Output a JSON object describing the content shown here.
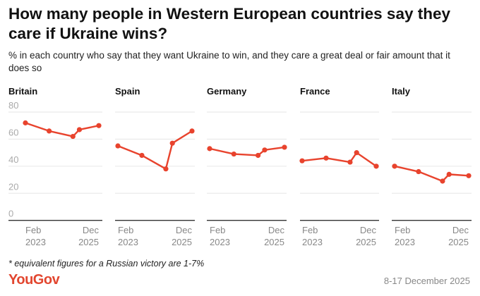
{
  "title": "How many people in Western European countries say they care if Ukraine wins?",
  "subtitle": "% in each country who say that they want Ukraine to win, and they care a great deal or fair amount that it does so",
  "footnote": "* equivalent figures for a Russian victory are 1-7%",
  "logo": "YouGov",
  "fieldwork_date": "8-17 December 2025",
  "colors": {
    "line": "#e8432d",
    "grid": "#e6e6e6",
    "axis": "#333333",
    "tick_text": "#aaaaaa",
    "logo": "#e2462f"
  },
  "chart_data": {
    "type": "line",
    "ylim": [
      0,
      80
    ],
    "yticks": [
      "0",
      "20",
      "40",
      "60",
      "80"
    ],
    "grid": true,
    "x": [
      "2023-02",
      "2024-01",
      "2024-12",
      "2025-03",
      "2025-12"
    ],
    "xtick_labels": [
      [
        "Feb",
        "2023"
      ],
      [
        "Dec",
        "2025"
      ]
    ],
    "panels": [
      {
        "name": "Britain",
        "values": [
          72,
          66,
          62,
          67,
          70
        ]
      },
      {
        "name": "Spain",
        "values": [
          55,
          48,
          38,
          57,
          66
        ]
      },
      {
        "name": "Germany",
        "values": [
          53,
          49,
          48,
          52,
          54
        ]
      },
      {
        "name": "France",
        "values": [
          44,
          46,
          43,
          50,
          40
        ]
      },
      {
        "name": "Italy",
        "values": [
          40,
          36,
          29,
          34,
          33
        ]
      }
    ]
  }
}
